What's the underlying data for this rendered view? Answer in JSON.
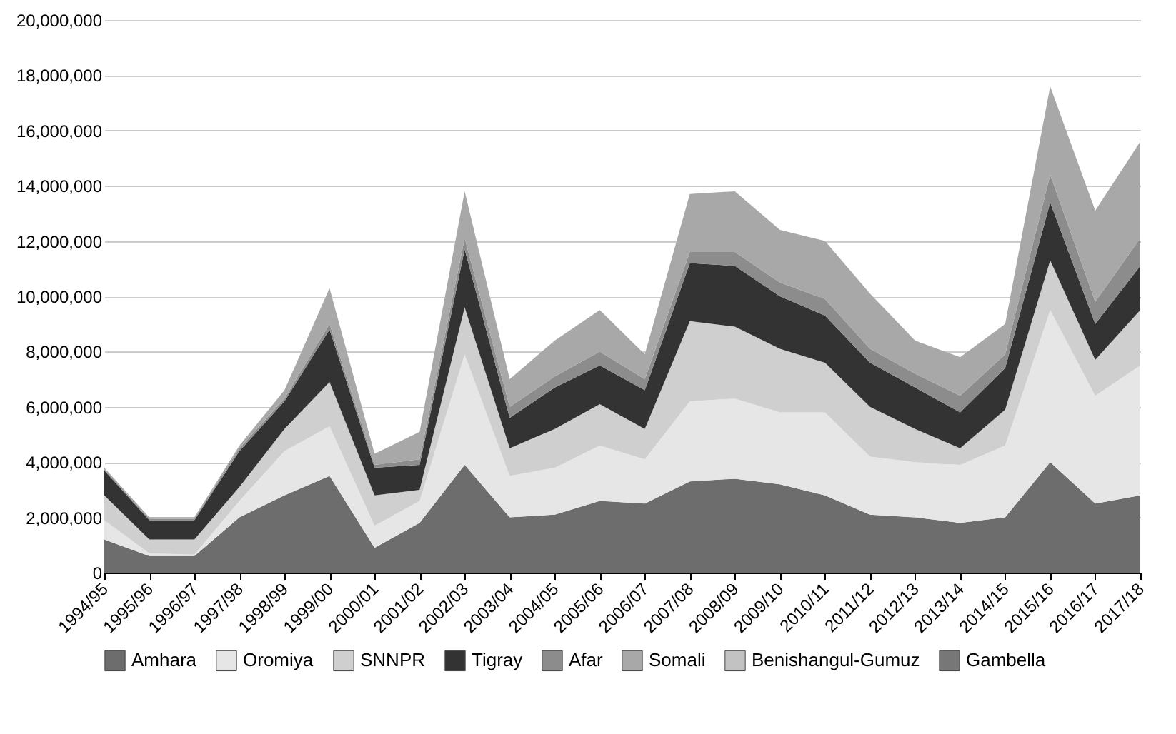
{
  "chart_data": {
    "type": "area",
    "stacked": true,
    "categories": [
      "1994/95",
      "1995/96",
      "1996/97",
      "1997/98",
      "1998/99",
      "1999/00",
      "2000/01",
      "2001/02",
      "2002/03",
      "2003/04",
      "2004/05",
      "2005/06",
      "2006/07",
      "2007/08",
      "2008/09",
      "2009/10",
      "2010/11",
      "2011/12",
      "2012/13",
      "2013/14",
      "2014/15",
      "2015/16",
      "2016/17",
      "2017/18"
    ],
    "series": [
      {
        "name": "Amhara",
        "color": "#6d6d6d",
        "values": [
          1200000,
          600000,
          600000,
          2000000,
          2800000,
          3500000,
          900000,
          1800000,
          3900000,
          2000000,
          2100000,
          2600000,
          2500000,
          3300000,
          3400000,
          3200000,
          2800000,
          2100000,
          2000000,
          1800000,
          2000000,
          4000000,
          2500000,
          2800000
        ]
      },
      {
        "name": "Oromiya",
        "color": "#e6e6e6",
        "values": [
          700000,
          100000,
          50000,
          600000,
          1600000,
          1800000,
          800000,
          800000,
          4000000,
          1500000,
          1700000,
          2000000,
          1600000,
          2900000,
          2900000,
          2600000,
          3000000,
          2100000,
          2000000,
          2100000,
          2600000,
          5500000,
          3900000,
          4700000
        ]
      },
      {
        "name": "SNNPR",
        "color": "#cfcfcf",
        "values": [
          900000,
          500000,
          550000,
          500000,
          800000,
          1600000,
          1100000,
          400000,
          1700000,
          1000000,
          1400000,
          1500000,
          1100000,
          2900000,
          2600000,
          2300000,
          1800000,
          1800000,
          1200000,
          600000,
          1300000,
          1800000,
          1300000,
          2000000
        ]
      },
      {
        "name": "Tigray",
        "color": "#333333",
        "values": [
          900000,
          700000,
          700000,
          1300000,
          1000000,
          1900000,
          1000000,
          900000,
          2100000,
          1100000,
          1500000,
          1400000,
          1400000,
          2100000,
          2200000,
          1900000,
          1700000,
          1600000,
          1500000,
          1300000,
          1500000,
          2100000,
          1300000,
          1600000
        ]
      },
      {
        "name": "Afar",
        "color": "#8c8c8c",
        "values": [
          50000,
          50000,
          50000,
          100000,
          100000,
          200000,
          100000,
          200000,
          400000,
          400000,
          400000,
          500000,
          400000,
          400000,
          500000,
          500000,
          600000,
          500000,
          500000,
          600000,
          500000,
          1000000,
          800000,
          1000000
        ]
      },
      {
        "name": "Somali",
        "color": "#a8a8a8",
        "values": [
          50000,
          50000,
          50000,
          100000,
          300000,
          1300000,
          400000,
          1000000,
          1700000,
          1000000,
          1300000,
          1500000,
          900000,
          2100000,
          2200000,
          1900000,
          2100000,
          2000000,
          1200000,
          1400000,
          1100000,
          3200000,
          3300000,
          3500000
        ]
      },
      {
        "name": "Benishangul-Gumuz",
        "color": "#c2c2c2",
        "values": [
          null,
          null,
          null,
          null,
          null,
          null,
          null,
          null,
          null,
          null,
          null,
          null,
          null,
          null,
          null,
          null,
          null,
          null,
          null,
          null,
          null,
          null,
          null,
          null
        ]
      },
      {
        "name": "Gambella",
        "color": "#777777",
        "values": [
          null,
          null,
          null,
          null,
          null,
          null,
          null,
          null,
          null,
          null,
          null,
          null,
          null,
          null,
          null,
          null,
          null,
          null,
          null,
          null,
          null,
          null,
          null,
          null
        ]
      }
    ],
    "ylim": [
      0,
      20000000
    ],
    "yticks": [
      0,
      {
        "value": 2000000,
        "label": "2,000,000"
      },
      {
        "value": 4000000,
        "label": "4,000,000"
      },
      {
        "value": 6000000,
        "label": "6,000,000"
      },
      {
        "value": 8000000,
        "label": "8,000,000"
      },
      {
        "value": 10000000,
        "label": "10,000,000"
      },
      {
        "value": 12000000,
        "label": "12,000,000"
      },
      {
        "value": 14000000,
        "label": "14,000,000"
      },
      {
        "value": 16000000,
        "label": "16,000,000"
      },
      {
        "value": 18000000,
        "label": "18,000,000"
      },
      {
        "value": 20000000,
        "label": "20,000,000"
      }
    ],
    "grid": "y",
    "legend": "bottom"
  }
}
